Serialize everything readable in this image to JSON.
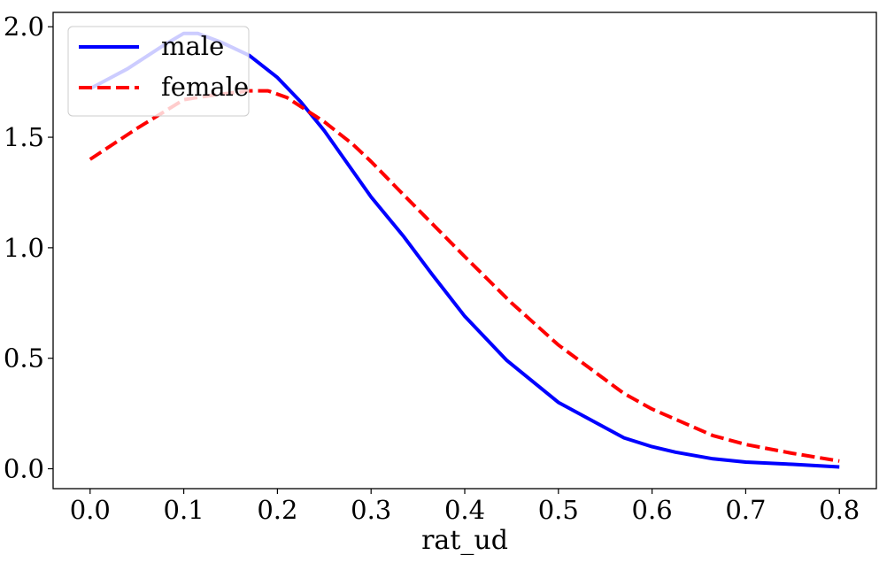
{
  "chart_data": {
    "type": "line",
    "title": "",
    "xlabel": "rat_ud",
    "ylabel": "",
    "xlim": [
      -0.0395,
      0.8395
    ],
    "ylim": [
      -0.09,
      2.065
    ],
    "xticks": [
      0.0,
      0.1,
      0.2,
      0.3,
      0.4,
      0.5,
      0.6,
      0.7,
      0.8
    ],
    "xtick_labels": [
      "0.0",
      "0.1",
      "0.2",
      "0.3",
      "0.4",
      "0.5",
      "0.6",
      "0.7",
      "0.8"
    ],
    "yticks": [
      0.0,
      0.5,
      1.0,
      1.5,
      2.0
    ],
    "ytick_labels": [
      "0.0",
      "0.5",
      "1.0",
      "1.5",
      "2.0"
    ],
    "grid": false,
    "legend_position": "upper-left",
    "series": [
      {
        "name": "male",
        "color": "#0000ff",
        "style": "solid",
        "x": [
          0.0,
          0.04,
          0.08,
          0.1,
          0.115,
          0.14,
          0.17,
          0.2,
          0.225,
          0.25,
          0.275,
          0.3,
          0.335,
          0.365,
          0.4,
          0.445,
          0.5,
          0.57,
          0.6,
          0.625,
          0.665,
          0.7,
          0.75,
          0.8
        ],
        "y": [
          1.72,
          1.81,
          1.92,
          1.97,
          1.97,
          1.93,
          1.87,
          1.77,
          1.66,
          1.53,
          1.38,
          1.23,
          1.05,
          0.88,
          0.69,
          0.49,
          0.3,
          0.14,
          0.1,
          0.075,
          0.045,
          0.03,
          0.02,
          0.008
        ]
      },
      {
        "name": "female",
        "color": "#ff0000",
        "style": "dashed",
        "x": [
          0.0,
          0.05,
          0.1,
          0.13,
          0.17,
          0.19,
          0.21,
          0.25,
          0.28,
          0.3,
          0.33,
          0.4,
          0.45,
          0.5,
          0.57,
          0.6,
          0.665,
          0.7,
          0.75,
          0.8
        ],
        "y": [
          1.4,
          1.54,
          1.67,
          1.69,
          1.71,
          1.71,
          1.68,
          1.57,
          1.47,
          1.39,
          1.26,
          0.96,
          0.75,
          0.56,
          0.34,
          0.27,
          0.15,
          0.11,
          0.07,
          0.035
        ]
      }
    ]
  }
}
